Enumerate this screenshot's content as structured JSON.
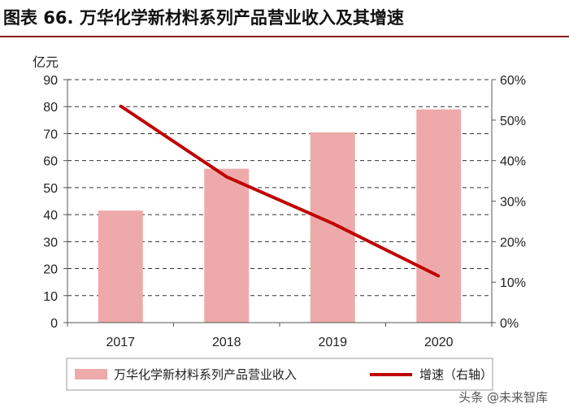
{
  "title": "图表 66. 万华化学新材料系列产品营业收入及其增速",
  "watermark": "头条 @未来智库",
  "chart_data": {
    "type": "bar",
    "categories": [
      "2017",
      "2018",
      "2019",
      "2020"
    ],
    "series": [
      {
        "name": "万华化学新材料系列产品营业收入",
        "type": "bar",
        "axis": "left",
        "color": "#eeaaaa",
        "values": [
          41.5,
          57,
          70.5,
          79
        ]
      },
      {
        "name": "增速（右轴）",
        "type": "line",
        "axis": "right",
        "color": "#c00000",
        "values": [
          53.5,
          36,
          24.5,
          11.5
        ]
      }
    ],
    "y_left": {
      "unit_label": "亿元",
      "ylim": [
        0,
        90
      ],
      "ticks": [
        "0",
        "10",
        "20",
        "30",
        "40",
        "50",
        "60",
        "70",
        "80",
        "90"
      ]
    },
    "y_right": {
      "ylim": [
        0,
        60
      ],
      "ticks": [
        "0%",
        "10%",
        "20%",
        "30%",
        "40%",
        "50%",
        "60%"
      ]
    },
    "grid": true,
    "legend_position": "bottom"
  }
}
